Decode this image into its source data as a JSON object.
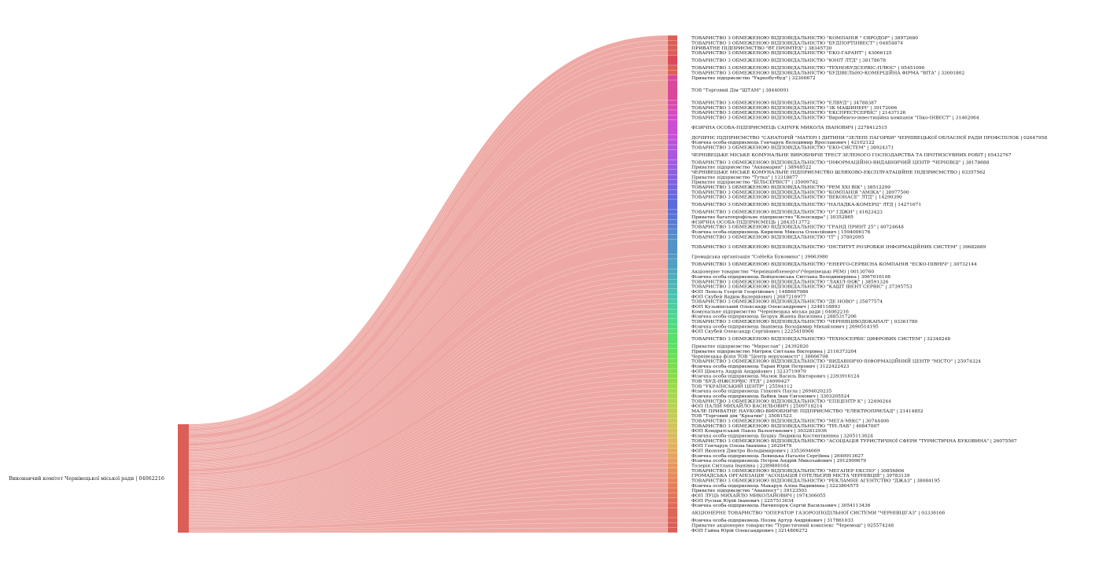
{
  "chart_data": {
    "type": "sankey",
    "colors": {
      "flow": "#e0625a",
      "source_node": "#db5f57"
    },
    "source": {
      "label": "Виконавчий комітет Чернівецької міської ради | 04062216"
    },
    "targets": [
      {
        "label": "ТОВАРИСТВО З ОБМЕЖЕНОЮ ВІДПОВІДАЛЬНІСТЮ \"КОМПАНІЯ \" ЄВРОДОР\" | 38972680",
        "color": "#db5f57",
        "size": 1
      },
      {
        "label": "ТОВАРИСТВО З ОБМЕЖЕНОЮ ВІДПОВІДАЛЬНІСТЮ \"БУДПОРТІНВЕСТ\" | 04854874",
        "color": "#db5f57",
        "size": 1
      },
      {
        "label": "ПРИВАТНЕ ПІДПРИЄМСТВО \"ВТ ПРОМТЕХ\" | 38345730",
        "color": "#db5f57",
        "size": 1
      },
      {
        "label": "ТОВАРИСТВО З ОБМЕЖЕНОЮ ВІДПОВІДАЛЬНІСТЮ \"ЕКО-ГАРАНТ\" | 43066125",
        "color": "#db5f57",
        "size": 1
      },
      {
        "label": "ТОВАРИСТВО З ОБМЕЖЕНОЮ ВІДПОВІДАЛЬНІСТЮ \"ЮНІТ ЛТД\" | 38178678",
        "color": "#dc4a5a",
        "size": 2
      },
      {
        "label": "ТОВАРИСТВО З ОБМЕЖЕНОЮ ВІДПОВІДАЛЬНІСТЮ \"ТЕХНОБУДСЕРВІС-ПЛЮС\" | 05451090",
        "color": "#db5f57",
        "size": 1
      },
      {
        "label": "ТОВАРИСТВО З ОБМЕЖЕНОЮ ВІДПОВІДАЛЬНІСТЮ \"БУДІВЕЛЬНО-КОМЕРЦІЙНА ФІРМА \"ВІТА\" | 33001802",
        "color": "#db5f57",
        "size": 1
      },
      {
        "label": "Приватне підприємство \"Укрпобутбуд\" | 32300672",
        "color": "#d9489a",
        "size": 1
      },
      {
        "label": "ТОВ \"Торговий Дім \"ШТАМ\" | 38440091",
        "color": "#d9489a",
        "size": 4
      },
      {
        "label": "ТОВАРИСТВО З ОБМЕЖЕНОЮ ВІДПОВІДАЛЬНІСТЮ \"ЕЛВУД\" | 34788387",
        "color": "#d94aaf",
        "size": 1
      },
      {
        "label": "ТОВАРИСТВО З ОБМЕЖЕНОЮ ВІДПОВІДАЛЬНІСТЮ \"ЗК МАШИНЕРІ\" | 39172006",
        "color": "#d94aaf",
        "size": 1
      },
      {
        "label": "ТОВАРИСТВО З ОБМЕЖЕНОЮ ВІДПОВІДАЛЬНІСТЮ \"ЕКСПРЕСТСЕРВІС\" | 21437126",
        "color": "#d34cc4",
        "size": 1
      },
      {
        "label": "ТОВАРИСТВО З ОБМЕЖЕНОЮ ВІДПОВІДАЛЬНІСТЮ \"Виробничо-інвестиційна компанія \"Піко-ІНВЕСТ\" | 31462064",
        "color": "#d34cc4",
        "size": 1
      },
      {
        "label": "ФІЗИЧНА ОСОБА-ПІДПРИЄМЕЦЬ САНЧУК МИКОЛА ІВАНОВИЧ | 2278412515",
        "color": "#cc4fd3",
        "size": 3
      },
      {
        "label": "ДОЧІРНЄ ПІДПРИЄМСТВО \"САНАТОРІЙ \"МАТЕРІ І ДИТИНИ \"ЗЕЛЕНІ ПАГОРБИ\" ЧЕРНІВЕЦЬКОЇ ОБЛАСНОЇ РАДИ ПРОФСПІЛОК | 02647958",
        "color": "#c451d7",
        "size": 1
      },
      {
        "label": "Фізична особа-підприємець Гончарук Володимир Ярославович | 42102122",
        "color": "#bb53da",
        "size": 1
      },
      {
        "label": "ТОВАРИСТВО З ОБМЕЖЕНОЮ ВІДПОВІДАЛЬНІСТЮ \"ЕКО-СИСТЕМ\" | 38924371",
        "color": "#b356dc",
        "size": 1
      },
      {
        "label": "ЧЕРНІВЕЦЬКЕ МІСЬКЕ КОМУНАЛЬНЕ ВИРОБНИЧЕ ТРЕСТ ЗЕЛЕНОГО ГОСПОДАРСТВА ТА ПРОТИЗСУВНИХ РОБІТ | 05432767",
        "color": "#ab58de",
        "size": 2
      },
      {
        "label": "ТОВАРИСТВО З ОБМЕЖЕНОЮ ВІДПОВІДАЛЬНІСТЮ \"ІНФОРМАЦІЙНО-ВИДАВНИЧИЙ ЦЕНТР \"ЧЕРНІВЦІ\" | 38178688",
        "color": "#a25bdf",
        "size": 1
      },
      {
        "label": "Приватне підприємство \"Аквамарин\" | 38948522",
        "color": "#995de0",
        "size": 1
      },
      {
        "label": "ЧЕРНІВЕЦЬКЕ МІСЬКЕ КОМУНАЛЬНЕ ПІДПРИЄМСТВО ШЛЯХОВО-ЕКСПЛУАТАЦІЙНЕ ПІДПРИЄМСТВО | 03357562",
        "color": "#905fe1",
        "size": 1
      },
      {
        "label": "Приватне підприємство \"Тутка\" | 13318877",
        "color": "#8761e1",
        "size": 1
      },
      {
        "label": "Приватне підприємство \"БІЛЬСЕРВІСТ\" | 35009782",
        "color": "#7e63e1",
        "size": 1
      },
      {
        "label": "ТОВАРИСТВО З ОБМЕЖЕНОЮ ВІДПОВІДАЛЬНІСТЮ \"РЕМ XXI ВІК\" | 38512299",
        "color": "#7565e0",
        "size": 1
      },
      {
        "label": "ТОВАРИСТВО З ОБМЕЖЕНОЮ ВІДПОВІДАЛЬНІСТЮ \"КОМПАНІЯ \"АМІКА\" | 38977500",
        "color": "#6c67df",
        "size": 1
      },
      {
        "label": "ТОВАРИСТВО З ОБМЕЖЕНОЮ ВІДПОВІДАЛЬНІСТЮ \"ВЕКОНАСЕ\" ЛТД\" | 14290390",
        "color": "#6469de",
        "size": 1
      },
      {
        "label": "ТОВАРИСТВО З ОБМЕЖЕНОЮ ВІДПОВІДАЛЬНІСТЮ \"НАЛАДКА-КОМЕРЦ\" ЛТД | 14271671",
        "color": "#5b6bdc",
        "size": 2
      },
      {
        "label": "ТОВАРИСТВО З ОБМЕЖЕНОЮ ВІДПОВІДАЛЬНІСТЮ \"О\" ГДЖИ\" | 41623423",
        "color": "#5a70d9",
        "size": 1
      },
      {
        "label": "Приватне багатопрофільне підприємство \"Клепсидра\" | 30352865",
        "color": "#5876d6",
        "size": 1
      },
      {
        "label": "ФІЗИЧНА ОСОБА-ПІДПРИЄМЕЦЬ | 2843513772",
        "color": "#577cd3",
        "size": 1
      },
      {
        "label": "ТОВАРИСТВО З ОБМЕЖЕНОЮ ВІДПОВІДАЛЬНІСТЮ \"ГРАНД ПРИНТ 25\" | 40724648",
        "color": "#5682d0",
        "size": 1
      },
      {
        "label": "Фізична особа-підприємець Кирилюк Микола Олексійович | 1594006176",
        "color": "#5588cd",
        "size": 1
      },
      {
        "label": "ТОВАРИСТВО З ОБМЕЖЕНОЮ ВІДПОВІДАЛЬНІСТЮ \"ІТ\" | 37802095",
        "color": "#548eca",
        "size": 1
      },
      {
        "label": "ТОВАРИСТВО З ОБМЕЖЕНОЮ ВІДПОВІДАЛЬНІСТЮ \"ІНСТИТУТ РОЗРОБКИ ІНФОРМАЦІЙНИХ СИСТЕМ\" | 39682689",
        "color": "#5394c7",
        "size": 3
      },
      {
        "label": "Громадська організація \"СоНеКа Буковина\" | 39663980",
        "color": "#529ac4",
        "size": 1
      },
      {
        "label": "ТОВАРИСТВО З ОБМЕЖЕНОЮ ВІДПОВІДАЛЬНІСТЮ \"ЕНЕРГО-СЕРВІСНА КОМПАНІЯ \"ЕСКО-ПІВНІЧ\" | 30732144",
        "color": "#51a0c1",
        "size": 2
      },
      {
        "label": "Акціонерне товариство \"Чернівціобленерго\"(Чернівецькі РЕМ) | 00130760",
        "color": "#50a6be",
        "size": 1
      },
      {
        "label": "Фізична особа-підприємець Войцеховська Світлана Володимирівна | 3067016108",
        "color": "#50acbb",
        "size": 1
      },
      {
        "label": "ТОВАРИСТВО З ОБМЕЖЕНОЮ ВІДПОВІДАЛЬНІСТЮ \"ЛАКІЛ-ІНЖ\" | 38591326",
        "color": "#4fb2b8",
        "size": 1
      },
      {
        "label": "ТОВАРИСТВО З ОБМЕЖЕНОЮ ВІДПОВІДАЛЬНІСТЮ \"КАШТ ІВЕНТ СЕРВІС\" | 37395753",
        "color": "#4eb8b5",
        "size": 1
      },
      {
        "label": "ФОП Лепель Георгій Георгійович | 1488607986",
        "color": "#4dbeb2",
        "size": 1
      },
      {
        "label": "ФОП Скубей Вадим Валерійович | 2687216977",
        "color": "#4cc4af",
        "size": 1
      },
      {
        "label": "ТОВАРИСТВО З ОБМЕЖЕНОЮ ВІДПОВІДАЛЬНІСТЮ \"ДЕ НОВО\" | 35877574",
        "color": "#4bcaa8",
        "size": 1
      },
      {
        "label": "ФОП Кузьмінський Олександр Олександрович | 3248118893",
        "color": "#4ccea0",
        "size": 1
      },
      {
        "label": "Комунальне підприємство \"Чернівецька міська ради | 04062216",
        "color": "#4dd298",
        "size": 1
      },
      {
        "label": "Фізична особа-підприємець Безрук Жанна Василівна | 2885317206",
        "color": "#4ed690",
        "size": 1
      },
      {
        "label": "ТОВАРИСТВО З ОБМЕЖЕНОЮ ВІДПОВІДАЛЬНІСТЮ \"ЧЕРНІВЦІВОДОКАНАЛ\" | 03361780",
        "color": "#50d987",
        "size": 1
      },
      {
        "label": "Фізична особа-підприємець Іванівець Володимир Михайлович | 2690514195",
        "color": "#52dc7e",
        "size": 1
      },
      {
        "label": "ФОП Скубей Олександр Сергійович | 2225418906",
        "color": "#55de75",
        "size": 1
      },
      {
        "label": "ТОВАРИСТВО З ОБМЕЖЕНОЮ ВІДПОВІДАЛЬНІСТЮ \"ТЕХНОСЕРВІС ЦИФРОВИХ СИСТЕМ\" | 32348248",
        "color": "#58df6c",
        "size": 2
      },
      {
        "label": "Приватне підприємство \"Мирослав\" | 24392820",
        "color": "#5ce064",
        "size": 1
      },
      {
        "label": "Приватне підприємство Митрюк Світлана Вікторівна | 2116373204",
        "color": "#62e05c",
        "size": 1
      },
      {
        "label": "Чернівецька філія ТОВ \"Центр нерухомості\" | 38666708",
        "color": "#69e056",
        "size": 1
      },
      {
        "label": "ТОВАРИСТВО З ОБМЕЖЕНОЮ ВІДПОВІДАЛЬНІСТЮ \"ВИДАВНИЧО-ІНФОРМАЦІЙНИЙ ЦЕНТР \"МІСТО\" | 25074324",
        "color": "#71df52",
        "size": 1
      },
      {
        "label": "Фізична особа-підприємець Таран Юрій Петрович | 3122422423",
        "color": "#79de4f",
        "size": 1
      },
      {
        "label": "ФОП Шекета Андрій Андрійович | 3233719979",
        "color": "#81dd4c",
        "size": 1
      },
      {
        "label": "Фізична особа-підприємець Мазюк Василь Вікторович | 2393916124",
        "color": "#89dc4b",
        "size": 1
      },
      {
        "label": "ТОВ \"БУД-ІНЖСЕРВІС ЛТД\" | 24099427",
        "color": "#91db4b",
        "size": 1
      },
      {
        "label": "ТОВ \"УКРАЇНСЬКИЙ ЦЕНТР\" | 25594112",
        "color": "#99da4c",
        "size": 1
      },
      {
        "label": "Фізична особа-підприємець Гінкевіч Паула | 2694020235",
        "color": "#a1d94d",
        "size": 1
      },
      {
        "label": "Фізична особа-підприємець Бабюк Іван Євгенович | 3303205524",
        "color": "#a8d74f",
        "size": 1
      },
      {
        "label": "ТОВАРИСТВО З ОБМЕЖЕНОЮ ВІДПОВІДАЛЬНІСТЮ \"ЕПІЦЕНТР К\" | 32490244",
        "color": "#afd551",
        "size": 1
      },
      {
        "label": "ФОП ПАЛІЙ МИХАЙЛО ВАСИЛЬОВИЧ | 2509718214",
        "color": "#b6d253",
        "size": 1
      },
      {
        "label": "МАЛЕ ПРИВАТНЕ НАУКОВО-ВИРОБНИЧЕ ПІДПРИЄМСТВО \"ЕЛЕКТРОПРИЛАД\" | 21414852",
        "color": "#bdcf55",
        "size": 1
      },
      {
        "label": "ТОВ \"Торговий дім \"Креатив\" | 35081523",
        "color": "#c4cc57",
        "size": 1
      },
      {
        "label": "ТОВАРИСТВО З ОБМЕЖЕНОЮ ВІДПОВІДАЛЬНІСТЮ \"МЕГА-МІКС\" | 30744406",
        "color": "#cac859",
        "size": 1
      },
      {
        "label": "ТОВАРИСТВО З ОБМЕЖЕНОЮ ВІДПОВІДАЛЬНІСТЮ \"ТРІ-ЛАБ\" | 40847007",
        "color": "#d0c45b",
        "size": 1
      },
      {
        "label": "ФОП Кондратський Павло Валентинович | 3032812936",
        "color": "#d5c05d",
        "size": 1
      },
      {
        "label": "Фізична особа-підприємець Бушку Людмила Костянтинівна | 3205113624",
        "color": "#dabb5e",
        "size": 1
      },
      {
        "label": "ТОВАРИСТВО З ОБМЕЖЕНОЮ ВІДПОВІДАЛЬНІСТЮ \"АСОЦІАЦІЯ ТУРИСТИЧНОЇ СФЕРИ \"ТУРИСТИЧНА БУКОВИНА\" | 26075567",
        "color": "#deb65f",
        "size": 1
      },
      {
        "label": "ФОП Гончарук Олена Іванівна | 2620479",
        "color": "#e1b160",
        "size": 1
      },
      {
        "label": "ФОП Яковлев Дмитро Володимирович | 3353694669",
        "color": "#e3ab60",
        "size": 1
      },
      {
        "label": "Фізична особа-підприємець Левицька Наталія Сергіївна | 2640913627",
        "color": "#e4a560",
        "size": 1
      },
      {
        "label": "Фізична особа-підприємець Петров Андрій Миколайович | 2912909679",
        "color": "#e59f60",
        "size": 1
      },
      {
        "label": "Толерія Світлана Іванівна | 2289800164",
        "color": "#e6995f",
        "size": 1
      },
      {
        "label": "ТОВАРИСТВО З ОБМЕЖЕНОЮ ВІДПОВІДАЛЬНІСТЮ \"МЕГАПЕР ЕКСПО\" | 30856806",
        "color": "#e6925e",
        "size": 1
      },
      {
        "label": "ГРОМАДСЬКА ОРГАНІЗАЦІЯ \"АСОЦІАЦІЯ ГОТЕЛЬЄРІВ МІСТА ЧЕРНІВЦІВ\" | 39783139",
        "color": "#e68b5d",
        "size": 1
      },
      {
        "label": "ТОВАРИСТВО З ОБМЕЖЕНОЮ ВІДПОВІДАЛЬНІСТЮ \"РЕКЛАМНЕ АГЕНТСТВО \"ДЖАЗ\" | 38084195",
        "color": "#e6855c",
        "size": 1
      },
      {
        "label": "Фізична особа-підприємець Макарук Аліна Вадимівна | 3223804575",
        "color": "#e57f5b",
        "size": 1
      },
      {
        "label": "Приватне підприємство \"Аванпост\" | 39123503",
        "color": "#e4795a",
        "size": 1
      },
      {
        "label": "ФОП ЛУЦЬ МИХАЙЛО МИКОЛАЙОВИЧ | 1974306055",
        "color": "#e37459",
        "size": 1
      },
      {
        "label": "ФОП Руснак Юрій Іванович | 2257513034",
        "color": "#e16f58",
        "size": 1
      },
      {
        "label": "Фізична особа-підприємець Ничипорук Сергій Васильович | 3054113436",
        "color": "#df6b57",
        "size": 1
      },
      {
        "label": "АКЦІОНЕРНЕ ТОВАРИСТВО \"ОПЕРАТОР ГАЗОРОЗПОДІЛЬНОЇ СИСТЕМИ \"ЧЕРНІВЦІГАЗ\" | 03336166",
        "color": "#dd6757",
        "size": 2
      },
      {
        "label": "Фізична особа-підприємець Поляк Артур Андрійович | 317861033",
        "color": "#db6356",
        "size": 1
      },
      {
        "label": "Приватне акціонерне товариство \"Туристичний комплекс \"Черемош\" | 025574248",
        "color": "#db5f57",
        "size": 1
      },
      {
        "label": "ФОП Гайна Юрій Олександрович | 3214806272",
        "color": "#db5f57",
        "size": 1
      }
    ]
  }
}
